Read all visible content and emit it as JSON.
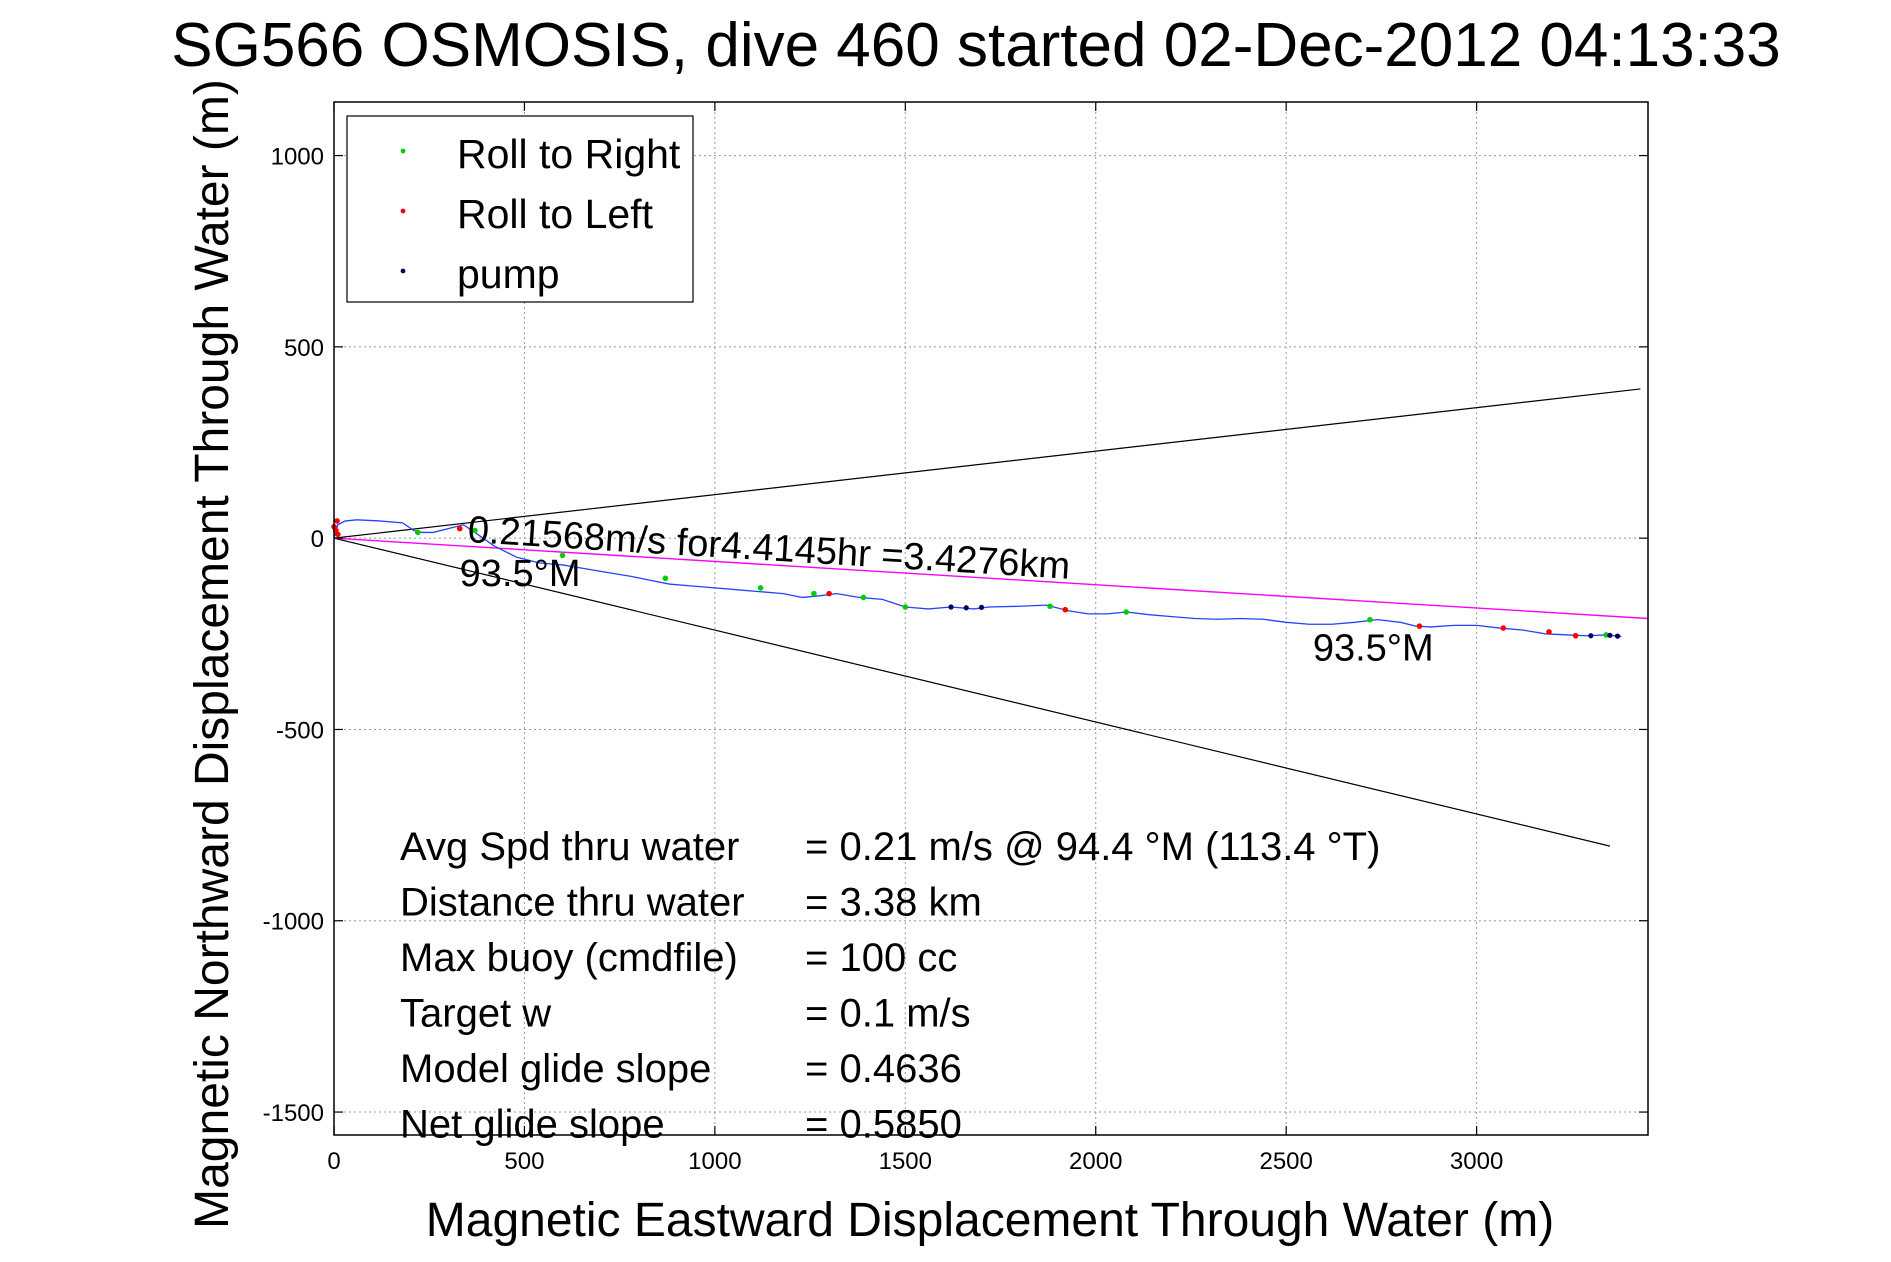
{
  "chart_data": {
    "type": "line",
    "title": "SG566 OSMOSIS, dive 460 started 02-Dec-2012 04:13:33",
    "xlabel": "Magnetic Eastward Displacement Through Water (m)",
    "ylabel": "Magnetic Northward Displacement Through Water (m)",
    "xlim": [
      0,
      3450
    ],
    "ylim": [
      -1560,
      1140
    ],
    "xticks": [
      0,
      500,
      1000,
      1500,
      2000,
      2500,
      3000
    ],
    "yticks": [
      -1500,
      -1000,
      -500,
      0,
      500,
      1000
    ],
    "grid": true,
    "legend_position": "top-left",
    "legend": [
      {
        "label": "Roll to Right",
        "color": "#00cc00"
      },
      {
        "label": "Roll to Left",
        "color": "#ff0000"
      },
      {
        "label": "pump",
        "color": "#000066"
      }
    ],
    "track": {
      "color": "#2244ff",
      "points": [
        [
          0,
          0
        ],
        [
          10,
          35
        ],
        [
          30,
          45
        ],
        [
          60,
          48
        ],
        [
          120,
          45
        ],
        [
          180,
          40
        ],
        [
          210,
          20
        ],
        [
          230,
          15
        ],
        [
          260,
          15
        ],
        [
          300,
          25
        ],
        [
          340,
          35
        ],
        [
          370,
          15
        ],
        [
          420,
          -20
        ],
        [
          480,
          -50
        ],
        [
          540,
          -65
        ],
        [
          600,
          -70
        ],
        [
          660,
          -80
        ],
        [
          720,
          -90
        ],
        [
          780,
          -100
        ],
        [
          830,
          -110
        ],
        [
          880,
          -120
        ],
        [
          940,
          -125
        ],
        [
          1000,
          -130
        ],
        [
          1060,
          -135
        ],
        [
          1120,
          -140
        ],
        [
          1180,
          -145
        ],
        [
          1230,
          -155
        ],
        [
          1280,
          -150
        ],
        [
          1320,
          -145
        ],
        [
          1380,
          -155
        ],
        [
          1440,
          -160
        ],
        [
          1500,
          -180
        ],
        [
          1560,
          -185
        ],
        [
          1620,
          -180
        ],
        [
          1680,
          -185
        ],
        [
          1720,
          -180
        ],
        [
          1800,
          -178
        ],
        [
          1870,
          -175
        ],
        [
          1930,
          -190
        ],
        [
          1980,
          -198
        ],
        [
          2030,
          -198
        ],
        [
          2080,
          -193
        ],
        [
          2140,
          -200
        ],
        [
          2200,
          -205
        ],
        [
          2260,
          -210
        ],
        [
          2320,
          -212
        ],
        [
          2380,
          -210
        ],
        [
          2440,
          -212
        ],
        [
          2500,
          -220
        ],
        [
          2560,
          -225
        ],
        [
          2620,
          -225
        ],
        [
          2680,
          -220
        ],
        [
          2740,
          -213
        ],
        [
          2800,
          -220
        ],
        [
          2840,
          -230
        ],
        [
          2880,
          -232
        ],
        [
          2940,
          -228
        ],
        [
          3000,
          -228
        ],
        [
          3060,
          -235
        ],
        [
          3120,
          -240
        ],
        [
          3180,
          -250
        ],
        [
          3240,
          -253
        ],
        [
          3290,
          -255
        ],
        [
          3340,
          -253
        ],
        [
          3380,
          -257
        ]
      ]
    },
    "roll_right_points": [
      [
        220,
        15
      ],
      [
        370,
        20
      ],
      [
        600,
        -45
      ],
      [
        870,
        -105
      ],
      [
        1120,
        -130
      ],
      [
        1260,
        -145
      ],
      [
        1390,
        -155
      ],
      [
        1500,
        -180
      ],
      [
        1880,
        -178
      ],
      [
        2080,
        -193
      ],
      [
        2720,
        -213
      ],
      [
        3340,
        -253
      ]
    ],
    "roll_left_points": [
      [
        0,
        30
      ],
      [
        5,
        20
      ],
      [
        10,
        10
      ],
      [
        8,
        45
      ],
      [
        330,
        25
      ],
      [
        1300,
        -145
      ],
      [
        1920,
        -187
      ],
      [
        2850,
        -230
      ],
      [
        3070,
        -235
      ],
      [
        3190,
        -245
      ],
      [
        3260,
        -255
      ]
    ],
    "pump_points": [
      [
        1620,
        -180
      ],
      [
        1660,
        -182
      ],
      [
        1700,
        -181
      ],
      [
        3300,
        -255
      ],
      [
        3350,
        -254
      ],
      [
        3370,
        -256
      ]
    ],
    "heading_line": {
      "color": "#ff00ff",
      "points": [
        [
          0,
          0
        ],
        [
          3450,
          -210
        ]
      ]
    },
    "envelope_lines": {
      "color": "#000000",
      "upper": [
        [
          0,
          0
        ],
        [
          3430,
          390
        ]
      ],
      "lower": [
        [
          0,
          0
        ],
        [
          3350,
          -805
        ]
      ]
    },
    "annotations": {
      "speed": "0.21568m/s for4.4145hr =3.4276km",
      "heading_start": "93.5°M",
      "heading_end": "93.5°M"
    },
    "stats": [
      {
        "label": "Avg Spd thru water",
        "value": "=  0.21 m/s @  94.4 °M (113.4 °T)"
      },
      {
        "label": "Distance thru water",
        "value": "=  3.38 km"
      },
      {
        "label": "Max buoy (cmdfile)",
        "value": "= 100 cc"
      },
      {
        "label": "Target w",
        "value": "= 0.1 m/s"
      },
      {
        "label": "Model glide slope",
        "value": "= 0.4636"
      },
      {
        "label": "Net glide slope",
        "value": "= 0.5850"
      }
    ]
  }
}
